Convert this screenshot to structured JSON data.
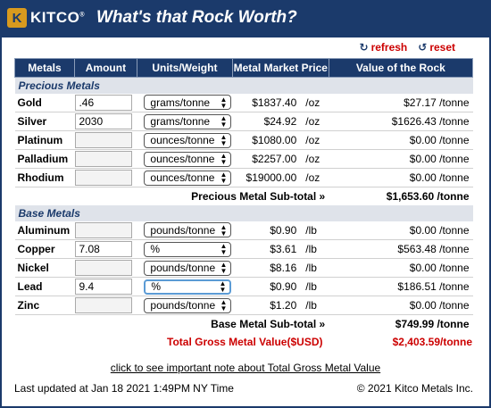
{
  "header": {
    "logo": "KITCO",
    "title": "What's that Rock Worth?"
  },
  "actions": {
    "refresh": "refresh",
    "reset": "reset"
  },
  "columns": [
    "Metals",
    "Amount",
    "Units/Weight",
    "Metal Market Price",
    "Value of the Rock"
  ],
  "precious": {
    "section_label": "Precious Metals",
    "rows": [
      {
        "metal": "Gold",
        "amount": ".46",
        "unit": "grams/tonne",
        "price": "$1837.40",
        "per": "/oz",
        "value": "$27.17 /tonne"
      },
      {
        "metal": "Silver",
        "amount": "2030",
        "unit": "grams/tonne",
        "price": "$24.92",
        "per": "/oz",
        "value": "$1626.43 /tonne"
      },
      {
        "metal": "Platinum",
        "amount": "",
        "unit": "ounces/tonne",
        "price": "$1080.00",
        "per": "/oz",
        "value": "$0.00 /tonne"
      },
      {
        "metal": "Palladium",
        "amount": "",
        "unit": "ounces/tonne",
        "price": "$2257.00",
        "per": "/oz",
        "value": "$0.00 /tonne"
      },
      {
        "metal": "Rhodium",
        "amount": "",
        "unit": "ounces/tonne",
        "price": "$19000.00",
        "per": "/oz",
        "value": "$0.00 /tonne"
      }
    ],
    "subtotal_label": "Precious Metal Sub-total »",
    "subtotal_value": "$1,653.60 /tonne"
  },
  "base": {
    "section_label": "Base Metals",
    "rows": [
      {
        "metal": "Aluminum",
        "amount": "",
        "unit": "pounds/tonne",
        "price": "$0.90",
        "per": "/lb",
        "value": "$0.00 /tonne"
      },
      {
        "metal": "Copper",
        "amount": "7.08",
        "unit": "%",
        "price": "$3.61",
        "per": "/lb",
        "value": "$563.48 /tonne"
      },
      {
        "metal": "Nickel",
        "amount": "",
        "unit": "pounds/tonne",
        "price": "$8.16",
        "per": "/lb",
        "value": "$0.00 /tonne"
      },
      {
        "metal": "Lead",
        "amount": "9.4",
        "unit": "%",
        "price": "$0.90",
        "per": "/lb",
        "value": "$186.51 /tonne"
      },
      {
        "metal": "Zinc",
        "amount": "",
        "unit": "pounds/tonne",
        "price": "$1.20",
        "per": "/lb",
        "value": "$0.00 /tonne"
      }
    ],
    "subtotal_label": "Base Metal Sub-total »",
    "subtotal_value": "$749.99 /tonne"
  },
  "gross": {
    "label": "Total Gross Metal Value($USD)",
    "value": "$2,403.59/tonne"
  },
  "note_link": "click to see important note about Total Gross Metal Value",
  "footer": {
    "updated": "Last updated at Jan 18 2021 1:49PM NY Time",
    "copyright": "© 2021 Kitco Metals Inc."
  },
  "colors": {
    "navy": "#1b3a6b",
    "red": "#cc0000",
    "gold": "#d89a1e"
  }
}
